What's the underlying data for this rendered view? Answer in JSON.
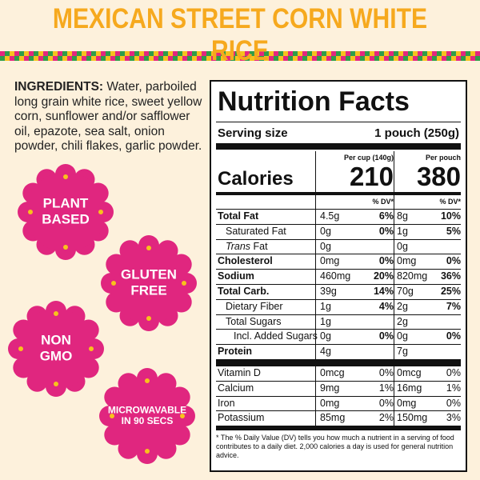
{
  "header": {
    "title": "MEXICAN STREET CORN WHITE RICE"
  },
  "ingredients": {
    "label": "INGREDIENTS:",
    "text": "Water, parboiled long grain white rice, sweet yellow corn, sunflower and/or safflower oil, epazote, sea salt, onion powder, chili flakes, garlic powder."
  },
  "badges": [
    {
      "lines": [
        "PLANT",
        "BASED"
      ]
    },
    {
      "lines": [
        "GLUTEN",
        "FREE"
      ]
    },
    {
      "lines": [
        "NON",
        "GMO"
      ]
    },
    {
      "lines": [
        "MICROWAVABLE",
        "IN 90 SECS"
      ]
    }
  ],
  "nutrition": {
    "title": "Nutrition Facts",
    "serving_label": "Serving size",
    "serving_value": "1 pouch (250g)",
    "col1_header": "Per cup (140g)",
    "col2_header": "Per pouch",
    "calories_label": "Calories",
    "calories": [
      "210",
      "380"
    ],
    "dv_header": "% DV*",
    "nutrients": [
      {
        "name": "Total Fat",
        "bold": true,
        "indent": 0,
        "c1": "4.5g",
        "d1": "6%",
        "c2": "8g",
        "d2": "10%"
      },
      {
        "name": "Saturated Fat",
        "bold": false,
        "indent": 1,
        "c1": "0g",
        "d1": "0%",
        "c2": "1g",
        "d2": "5%"
      },
      {
        "name_italic": "Trans",
        "name": "Fat",
        "bold": false,
        "indent": 1,
        "c1": "0g",
        "c2": "0g"
      },
      {
        "name": "Cholesterol",
        "bold": true,
        "indent": 0,
        "c1": "0mg",
        "d1": "0%",
        "c2": "0mg",
        "d2": "0%"
      },
      {
        "name": "Sodium",
        "bold": true,
        "indent": 0,
        "c1": "460mg",
        "d1": "20%",
        "c2": "820mg",
        "d2": "36%"
      },
      {
        "name": "Total Carb.",
        "bold": true,
        "indent": 0,
        "c1": "39g",
        "d1": "14%",
        "c2": "70g",
        "d2": "25%"
      },
      {
        "name": "Dietary Fiber",
        "bold": false,
        "indent": 1,
        "c1": "1g",
        "d1": "4%",
        "c2": "2g",
        "d2": "7%"
      },
      {
        "name": "Total Sugars",
        "bold": false,
        "indent": 1,
        "c1": "1g",
        "c2": "2g"
      },
      {
        "name": "Incl. Added Sugars",
        "bold": false,
        "indent": 2,
        "c1": "0g",
        "d1": "0%",
        "c2": "0g",
        "d2": "0%"
      },
      {
        "name": "Protein",
        "bold": true,
        "indent": 0,
        "c1": "4g",
        "c2": "7g"
      }
    ],
    "vitamins": [
      {
        "name": "Vitamin D",
        "c1": "0mcg",
        "d1": "0%",
        "c2": "0mcg",
        "d2": "0%"
      },
      {
        "name": "Calcium",
        "c1": "9mg",
        "d1": "1%",
        "c2": "16mg",
        "d2": "1%"
      },
      {
        "name": "Iron",
        "c1": "0mg",
        "d1": "0%",
        "c2": "0mg",
        "d2": "0%"
      },
      {
        "name": "Potassium",
        "c1": "85mg",
        "d1": "2%",
        "c2": "150mg",
        "d2": "3%"
      }
    ],
    "footnote": "* The % Daily Value (DV) tells you how much a nutrient in a serving of food contributes to a daily diet. 2,000 calories a day is used for general nutrition advice."
  }
}
